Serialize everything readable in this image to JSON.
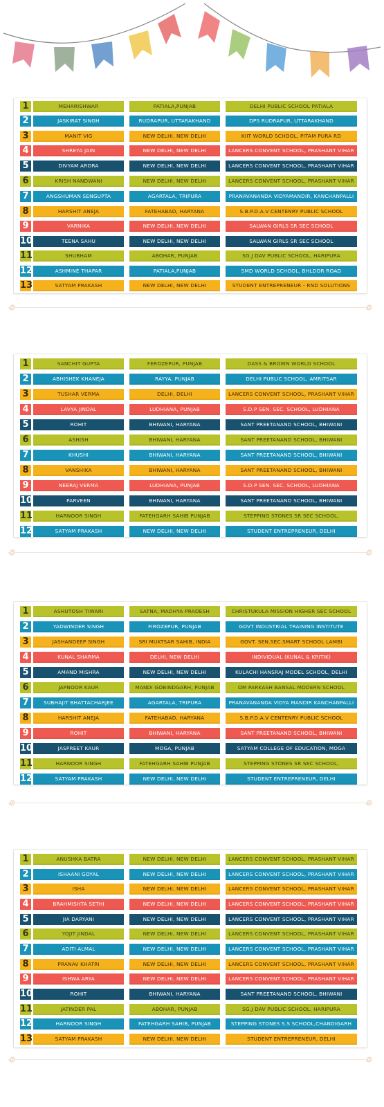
{
  "colors": {
    "green": "#b8c22a",
    "blue": "#1a93b8",
    "orange": "#f5b21c",
    "red": "#ee5a51",
    "navy": "#18526e"
  },
  "sections": [
    {
      "title": "",
      "rows": [
        {
          "num": "1",
          "color": "green",
          "name": "MEHARISHWAR",
          "city": "PATIALA,PUNJAB",
          "school": "DELHI PUBLIC SCHOOL PATIALA"
        },
        {
          "num": "2",
          "color": "blue",
          "name": "JASKIRAT SINGH",
          "city": "RUDRAPUR, UTTARAKHAND",
          "school": "DPS RUDRAPUR, UTTARAKHAND"
        },
        {
          "num": "3",
          "color": "orange",
          "name": "MANIT VIG",
          "city": "NEW DELHI, NEW DELHI",
          "school": "KIIT WORLD SCHOOL, PITAM PURA RD"
        },
        {
          "num": "4",
          "color": "red",
          "name": "SHREYA JAIN",
          "city": "NEW DELHI, NEW DELHI",
          "school": "LANCERS CONVENT SCHOOL, PRASHANT VIHAR"
        },
        {
          "num": "5",
          "color": "navy",
          "name": "DIVYAM ARORA",
          "city": "NEW DELHI, NEW DELHI",
          "school": "LANCERS CONVENT SCHOOL, PRASHANT VIHAR"
        },
        {
          "num": "6",
          "color": "green",
          "name": "KRISH NANDWANI",
          "city": "NEW DELHI, NEW DELHI",
          "school": "LANCERS CONVENT SCHOOL, PRASHANT VIHAR"
        },
        {
          "num": "7",
          "color": "blue",
          "name": "ANGSHUMAN SENGUPTA",
          "city": "AGARTALA, TRIPURA",
          "school": "PRANAVANANDA VIDYAMANDIR, KANCHANPALLI"
        },
        {
          "num": "8",
          "color": "orange",
          "name": "HARSHIT ANEJA",
          "city": "FATEHABAD, HARYANA",
          "school": "S.B.P.D.A.V CENTENRY PUBLIC SCHOOL"
        },
        {
          "num": "9",
          "color": "red",
          "name": "VARNIKA",
          "city": "NEW DELHI, NEW DELHI",
          "school": "SALWAN GIRLS SR SEC SCHOOL"
        },
        {
          "num": "10",
          "color": "navy",
          "name": "TEENA SAHU",
          "city": "NEW DELHI, NEW DELHI",
          "school": "SALWAN GIRLS SR SEC SCHOOL"
        },
        {
          "num": "11",
          "color": "green",
          "name": "SHUBHAM",
          "city": "ABOHAR, PUNJAB",
          "school": "SG.J DAV PUBLIC SCHOOL, HARIPURA"
        },
        {
          "num": "12",
          "color": "blue",
          "name": "ASHMINE THAPAR",
          "city": "PATIALA,PUNJAB",
          "school": "SMD WORLD SCHOOL, BHLDOR ROAD"
        },
        {
          "num": "13",
          "color": "orange",
          "name": "SATYAM PRAKASH",
          "city": "NEW DELHI, NEW DELHI",
          "school": "STUDENT ENTREPRENEUR - RND SOLUTIONS"
        }
      ]
    },
    {
      "title": "",
      "rows": [
        {
          "num": "1",
          "color": "green",
          "name": "SANCHIT GUPTA",
          "city": "FEROZEPUR, PUNJAB",
          "school": "DASS & BROWN WORLD SCHOOL"
        },
        {
          "num": "2",
          "color": "blue",
          "name": "ABHISHEK KHANEJA",
          "city": "RAYYA, PUNJAB",
          "school": "DELHI PUBLIC SCHOOL, AMRITSAR"
        },
        {
          "num": "3",
          "color": "orange",
          "name": "TUSHAR VERMA",
          "city": "DELHI, DELHI",
          "school": "LANCERS CONVENT SCHOOL, PRASHANT VIHAR"
        },
        {
          "num": "4",
          "color": "red",
          "name": "LAVYA JINDAL",
          "city": "LUDHIANA, PUNJAB",
          "school": "S.D.P SEN. SEC. SCHOOL, LUDHIANA"
        },
        {
          "num": "5",
          "color": "navy",
          "name": "ROHIT",
          "city": "BHIWANI, HARYANA",
          "school": "SANT PREETANAND SCHOOL, BHIWANI"
        },
        {
          "num": "6",
          "color": "green",
          "name": "ASHISH",
          "city": "BHIWANI, HARYANA",
          "school": "SANT PREETANAND SCHOOL, BHIWANI"
        },
        {
          "num": "7",
          "color": "blue",
          "name": "KHUSHI",
          "city": "BHIWANI, HARYANA",
          "school": "SANT PREETANAND SCHOOL, BHIWANI"
        },
        {
          "num": "8",
          "color": "orange",
          "name": "VANSHIKA",
          "city": "BHIWANI, HARYANA",
          "school": "SANT PREETANAND SCHOOL, BHIWANI"
        },
        {
          "num": "9",
          "color": "red",
          "name": "NEERAJ VERMA",
          "city": "LUDHIANA, PUNJAB",
          "school": "S.D.P SEN. SEC. SCHOOL, LUDHIANA"
        },
        {
          "num": "10",
          "color": "navy",
          "name": "PARVEEN",
          "city": "BHIWANI, HARYANA",
          "school": "SANT PREETANAND SCHOOL, BHIWANI"
        },
        {
          "num": "11",
          "color": "green",
          "name": "HARNOOR SINGH",
          "city": "FATEHGARH SAHIB PUNJAB",
          "school": "STEPPING STONES SR SEC SCHOOL,"
        },
        {
          "num": "12",
          "color": "blue",
          "name": "SATYAM PRAKASH",
          "city": "NEW DELHI, NEW DELHI",
          "school": "STUDENT ENTREPRENEUR, DELHI"
        }
      ]
    },
    {
      "title": "",
      "rows": [
        {
          "num": "1",
          "color": "green",
          "name": "ASHUTOSH TIWARI",
          "city": "SATNA, MADHYA PRADESH",
          "school": "CHRISTUKULA MISSION HIGHER SEC SCHOOL"
        },
        {
          "num": "2",
          "color": "blue",
          "name": "YADWINDER SINGH",
          "city": "FIROZEPUR, PUNJAB",
          "school": "GOVT INDUSTRIAL TRAINING INSTITUTE"
        },
        {
          "num": "3",
          "color": "orange",
          "name": "JASHANDEEP SINGH",
          "city": "SRI MUKTSAR SAHIB, INDIA",
          "school": "GOVT. SEN.SEC.SMART SCHOOL LAMBI"
        },
        {
          "num": "4",
          "color": "red",
          "name": "KUNAL SHARMA",
          "city": "DELHI, NEW DELHI",
          "school": "INDIVIDUAL (KUNAL & KRITIK)"
        },
        {
          "num": "5",
          "color": "navy",
          "name": "AMAND MISHRA",
          "city": "NEW DELHI, NEW DELHI",
          "school": "KULACHI HANSRAJ MODEL SCHOOL, DELHI"
        },
        {
          "num": "6",
          "color": "green",
          "name": "JAPNOOR KAUR",
          "city": "MANDI GOBINDGARH, PUNJAB",
          "school": "OM PARKASH BANSAL MODERN SCHOOL"
        },
        {
          "num": "7",
          "color": "blue",
          "name": "SUBHAJIT BHATTACHARJEE",
          "city": "AGARTALA, TRIPURA",
          "school": "PRANAVANANDA VIDYA MANDIR KANCHANPALLI"
        },
        {
          "num": "8",
          "color": "orange",
          "name": "HARSHIT ANEJA",
          "city": "FATEHABAD, HARYANA",
          "school": "S.B.P.D.A.V CENTENRY PUBLIC SCHOOL"
        },
        {
          "num": "9",
          "color": "red",
          "name": "ROHIT",
          "city": "BHIWANI, HARYANA",
          "school": "SANT PREETANAND SCHOOL, BHIWANI"
        },
        {
          "num": "10",
          "color": "navy",
          "name": "JASPREET KAUR",
          "city": "MOGA, PUNJAB",
          "school": "SATYAM COLLEGE OF EDUCATION, MOGA"
        },
        {
          "num": "11",
          "color": "green",
          "name": "HARNOOR SINGH",
          "city": "FATEHGARH SAHIB PUNJAB",
          "school": "STEPPING STONES SR SEC SCHOOL,"
        },
        {
          "num": "12",
          "color": "blue",
          "name": "SATYAM PRAKASH",
          "city": "NEW DELHI, NEW DELHI",
          "school": "STUDENT ENTREPRENEUR, DELHI"
        }
      ]
    },
    {
      "title": "",
      "rows": [
        {
          "num": "1",
          "color": "green",
          "name": "ANUSHKA BATRA",
          "city": "NEW DELHI, NEW DELHI",
          "school": "LANCERS CONVENT SCHOOL, PRASHANT VIHAR"
        },
        {
          "num": "2",
          "color": "blue",
          "name": "ISHAANI GOYAL",
          "city": "NEW DELHI, NEW DELHI",
          "school": "LANCERS CONVENT SCHOOL, PRASHANT VIHAR"
        },
        {
          "num": "3",
          "color": "orange",
          "name": "ISHA",
          "city": "NEW DELHI, NEW DELHI",
          "school": "LANCERS CONVENT SCHOOL, PRASHANT VIHAR"
        },
        {
          "num": "4",
          "color": "red",
          "name": "BRAHMISHTA SETHI",
          "city": "NEW DELHI, NEW DELHI",
          "school": "LANCERS CONVENT SCHOOL, PRASHANT VIHAR"
        },
        {
          "num": "5",
          "color": "navy",
          "name": "JIA DARYANI",
          "city": "NEW DELHI, NEW DELHI",
          "school": "LANCERS CONVENT SCHOOL, PRASHANT VIHAR"
        },
        {
          "num": "6",
          "color": "green",
          "name": "YOJIT JINDAL",
          "city": "NEW DELHI, NEW DELHI",
          "school": "LANCERS CONVENT SCHOOL, PRASHANT VIHAR"
        },
        {
          "num": "7",
          "color": "blue",
          "name": "ADITI ALMAL",
          "city": "NEW DELHI, NEW DELHI",
          "school": "LANCERS CONVENT SCHOOL, PRASHANT VIHAR"
        },
        {
          "num": "8",
          "color": "orange",
          "name": "PRANAV KHATRI",
          "city": "NEW DELHI, NEW DELHI",
          "school": "LANCERS CONVENT SCHOOL, PRASHANT VIHAR"
        },
        {
          "num": "9",
          "color": "red",
          "name": "ISHWA ARYA",
          "city": "NEW DELHI, NEW DELHI",
          "school": "LANCERS CONVENT SCHOOL, PRASHANT VIHAR"
        },
        {
          "num": "10",
          "color": "navy",
          "name": "ROHIT",
          "city": "BHIWANI, HARYANA",
          "school": "SANT PREETANAND SCHOOL, BHIWANI"
        },
        {
          "num": "11",
          "color": "green",
          "name": "JATINDER PAL",
          "city": "ABOHAR, PUNJAB",
          "school": "SG.J DAV PUBLIC SCHOOL, HARIPURA"
        },
        {
          "num": "12",
          "color": "blue",
          "name": "HARNOOR SINGH",
          "city": "FATEHGARH SAHIB, PUNJAB",
          "school": "STEPPING STONES S.S SCHOOL,CHANDIGARH"
        },
        {
          "num": "13",
          "color": "orange",
          "name": "SATYAM PRAKASH",
          "city": "NEW DELHI, NEW DELHI",
          "school": "STUDENT ENTREPRENEUR, DELHI"
        }
      ]
    }
  ]
}
